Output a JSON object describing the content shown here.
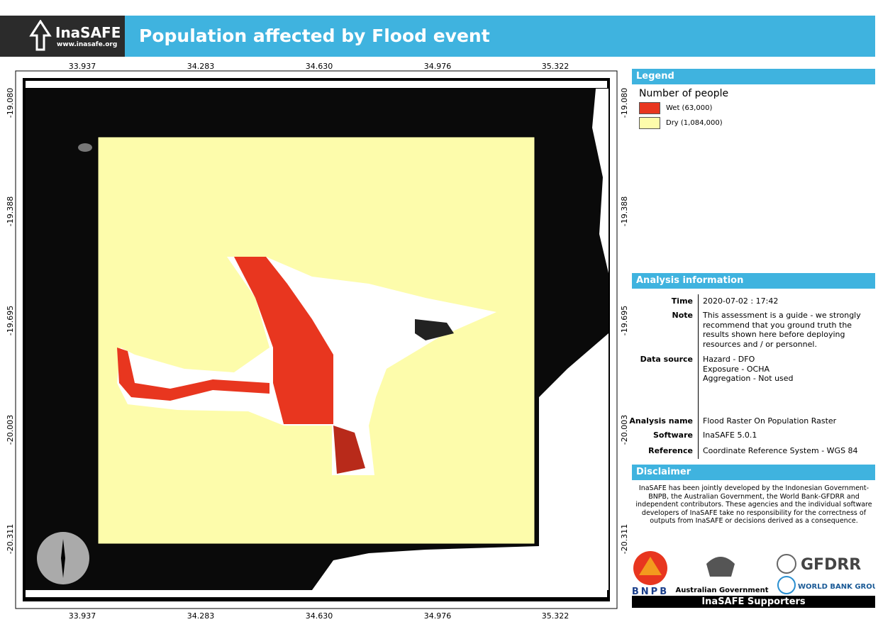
{
  "header": {
    "logo": "InaSAFE",
    "url": "www.inasafe.org",
    "title": "Population affected by Flood event"
  },
  "map": {
    "x_labels": [
      "33.937",
      "34.283",
      "34.630",
      "34.976",
      "35.322"
    ],
    "y_labels": [
      "-19.080",
      "-19.388",
      "-19.695",
      "-20.003",
      "-20.311"
    ]
  },
  "legend": {
    "title": "Legend",
    "subtitle": "Number of people",
    "items": [
      {
        "label": "Wet (63,000)",
        "color": "#e8361f"
      },
      {
        "label": "Dry (1,084,000)",
        "color": "#fdfcab"
      }
    ]
  },
  "analysis": {
    "title": "Analysis information",
    "rows": [
      {
        "label": "Time",
        "value": [
          "2020-07-02 : 17:42"
        ]
      },
      {
        "label": "Note",
        "value": [
          "This assessment is a guide - we strongly recommend that you ground truth the results shown here before deploying resources and / or personnel."
        ]
      },
      {
        "label": "Data source",
        "value": [
          "Hazard - DFO",
          "Exposure - OCHA",
          "Aggregation - Not used"
        ]
      },
      {
        "label": "Analysis name",
        "value": [
          "Flood Raster On Population Raster"
        ]
      },
      {
        "label": "Software",
        "value": [
          "InaSAFE 5.0.1"
        ]
      },
      {
        "label": "Reference",
        "value": [
          "Coordinate Reference System - WGS 84"
        ]
      }
    ]
  },
  "disclaimer": {
    "title": "Disclaimer",
    "text": "InaSAFE has been jointly developed by the Indonesian Government-BNPB, the Australian Government, the World Bank-GFDRR and independent contributors. These agencies and the individual software developers of InaSAFE take no responsibility for the correctness of outputs from InaSAFE or decisions derived as a consequence."
  },
  "supporters": {
    "bnpb": "BNPB",
    "australia": "Australian Government",
    "gfdrr": "GFDRR",
    "worldbank": "WORLD BANK GROUP",
    "title": "InaSAFE Supporters"
  }
}
